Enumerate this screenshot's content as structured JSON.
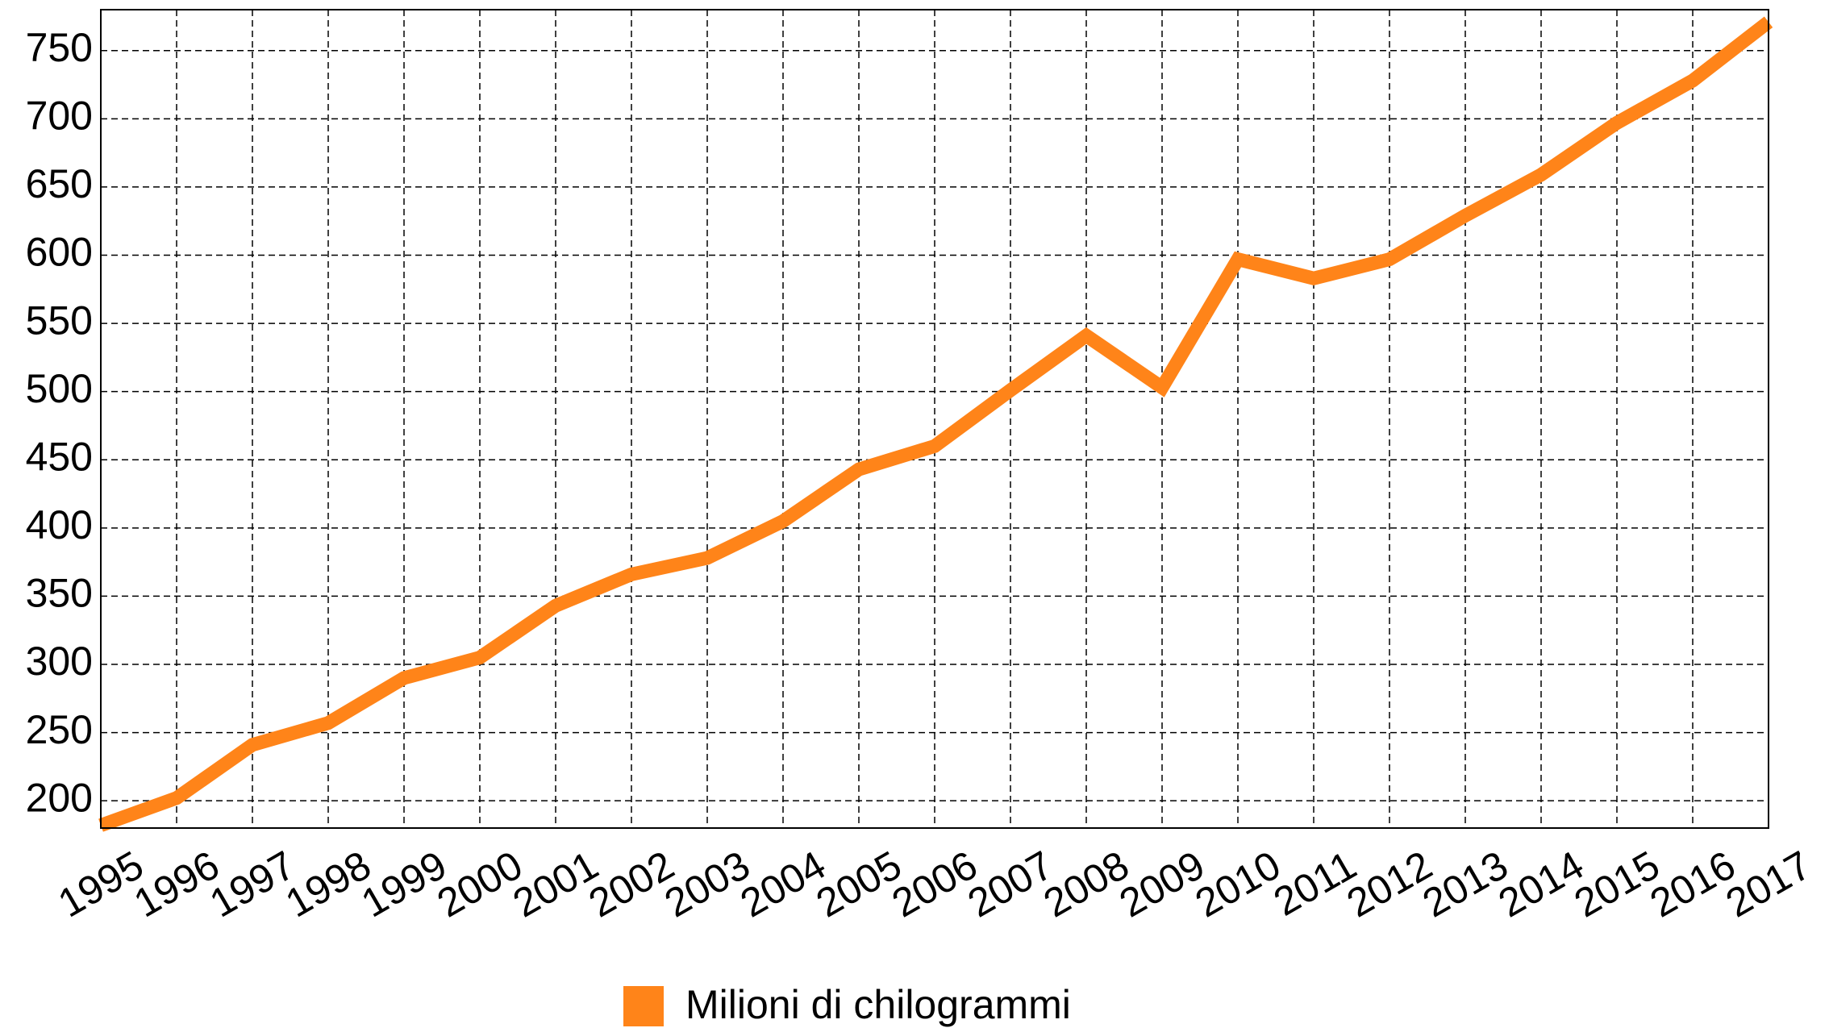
{
  "chart_data": {
    "type": "line",
    "x": [
      1995,
      1996,
      1997,
      1998,
      1999,
      2000,
      2001,
      2002,
      2003,
      2004,
      2005,
      2006,
      2007,
      2008,
      2009,
      2010,
      2011,
      2012,
      2013,
      2014,
      2015,
      2016,
      2017
    ],
    "series": [
      {
        "name": "Milioni di chilogrammi",
        "color": "#ff8419",
        "values": [
          182,
          202,
          241,
          257,
          290,
          305,
          343,
          366,
          378,
          405,
          443,
          460,
          501,
          541,
          503,
          597,
          583,
          597,
          629,
          659,
          697,
          728,
          771
        ]
      }
    ],
    "xlim": [
      1995,
      2017
    ],
    "xticks": [
      1995,
      1996,
      1997,
      1998,
      1999,
      2000,
      2001,
      2002,
      2003,
      2004,
      2005,
      2006,
      2007,
      2008,
      2009,
      2010,
      2011,
      2012,
      2013,
      2014,
      2015,
      2016,
      2017
    ],
    "ylim": [
      180,
      780
    ],
    "yticks": [
      200,
      250,
      300,
      350,
      400,
      450,
      500,
      550,
      600,
      650,
      700,
      750
    ],
    "grid": true,
    "legend": "bottom"
  }
}
